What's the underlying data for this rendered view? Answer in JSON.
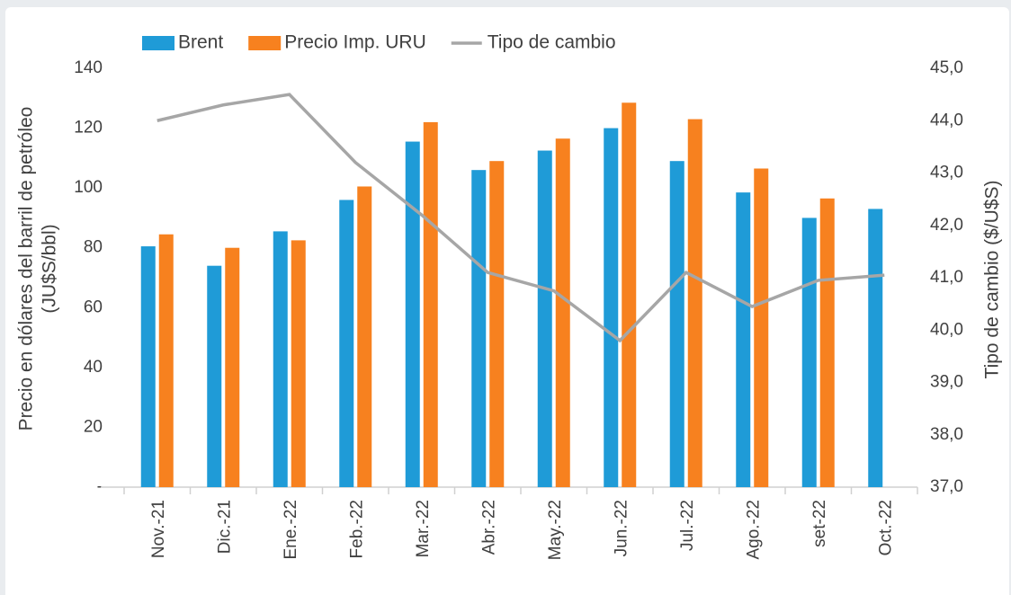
{
  "chart_data": {
    "type": "bar_line",
    "categories": [
      "Nov.-21",
      "Dic.-21",
      "Ene.-22",
      "Feb.-22",
      "Mar.-22",
      "Abr.-22",
      "May.-22",
      "Jun.-22",
      "Jul.-22",
      "Ago.-22",
      "set-22",
      "Oct.-22"
    ],
    "series": [
      {
        "name": "Brent",
        "color": "#1f9bd7",
        "values": [
          80.5,
          74,
          85.5,
          96,
          115.5,
          106,
          112.5,
          120,
          109,
          98.5,
          90,
          93
        ]
      },
      {
        "name": "Precio Imp. URU",
        "color": "#f7811f",
        "values": [
          84.5,
          80,
          82.5,
          100.5,
          122,
          109,
          116.5,
          128.5,
          123,
          106.5,
          96.5,
          null
        ]
      },
      {
        "name": "Tipo de cambio",
        "color": "#a6a6a6",
        "axis": "y2",
        "values": [
          44.0,
          44.3,
          44.5,
          43.2,
          42.2,
          41.1,
          40.75,
          39.8,
          41.1,
          40.45,
          40.95,
          41.05
        ]
      }
    ],
    "y_label": [
      "Precio en dólares del barril de petróleo",
      "(JU$S/bbl)"
    ],
    "y2_label": "Tipo de cambio ($/U$S)",
    "ylim": [
      0,
      140
    ],
    "yticks": [
      {
        "value": 0,
        "label": "-"
      },
      20,
      40,
      60,
      80,
      100,
      120,
      140
    ],
    "y2lim": [
      37,
      45
    ],
    "y2ticks": [
      {
        "value": 37,
        "label": "37,0"
      },
      {
        "value": 38,
        "label": "38,0"
      },
      {
        "value": 39,
        "label": "39,0"
      },
      {
        "value": 40,
        "label": "40,0"
      },
      {
        "value": 41,
        "label": "41,0"
      },
      {
        "value": 42,
        "label": "42,0"
      },
      {
        "value": 43,
        "label": "43,0"
      },
      {
        "value": 44,
        "label": "44,0"
      },
      {
        "value": 45,
        "label": "45,0"
      }
    ],
    "legend": "top"
  }
}
